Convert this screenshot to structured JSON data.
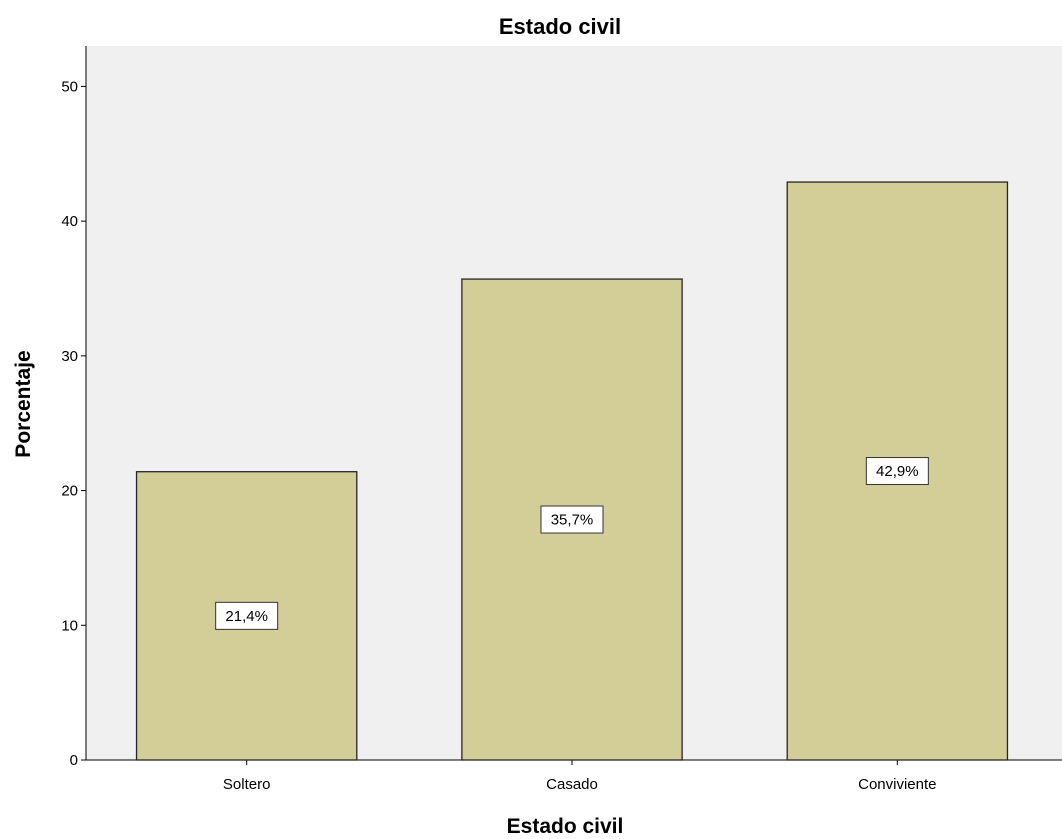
{
  "chart_data": {
    "type": "bar",
    "title": "Estado civil",
    "xlabel": "Estado civil",
    "ylabel": "Porcentaje",
    "categories": [
      "Soltero",
      "Casado",
      "Conviviente"
    ],
    "values": [
      21.4,
      35.7,
      42.9
    ],
    "data_labels": [
      "21,4%",
      "35,7%",
      "42,9%"
    ],
    "ylim": [
      0,
      53
    ],
    "yticks": [
      0,
      10,
      20,
      30,
      40,
      50
    ],
    "ytick_labels": [
      "0",
      "10",
      "20",
      "30",
      "40",
      "50"
    ],
    "grid": false,
    "bar_color": "#d3cd98",
    "bar_edge_color": "#262626",
    "plot_background": "#f0f0f0"
  }
}
